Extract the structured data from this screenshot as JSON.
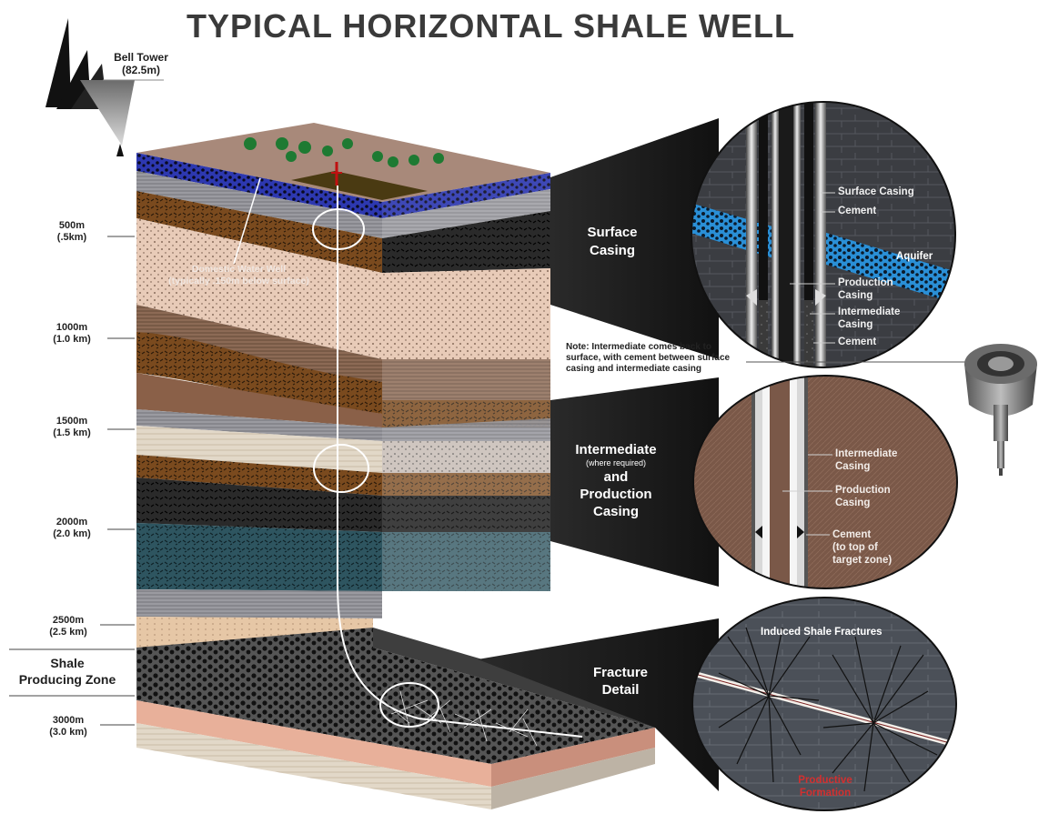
{
  "title": "TYPICAL HORIZONTAL SHALE WELL",
  "bell_tower": {
    "line1": "Bell Tower",
    "line2": "(82.5m)"
  },
  "depth_labels": [
    {
      "depth": "500m",
      "km": "(.5km)"
    },
    {
      "depth": "1000m",
      "km": "(1.0 km)"
    },
    {
      "depth": "1500m",
      "km": "(1.5 km)"
    },
    {
      "depth": "2000m",
      "km": "(2.0 km)"
    },
    {
      "depth": "2500m",
      "km": "(2.5 km)"
    },
    {
      "depth": "3000m",
      "km": "(3.0 km)"
    }
  ],
  "shale_zone": {
    "line1": "Shale",
    "line2": "Producing Zone"
  },
  "water_well": {
    "line1": "Domestic Water Well",
    "line2": "(typically .150m below surface)"
  },
  "callouts": {
    "surface": {
      "line1": "Surface",
      "line2": "Casing"
    },
    "intermediate": {
      "line1": "Intermediate",
      "line2": "(where required)",
      "line3": "and",
      "line4": "Production",
      "line5": "Casing"
    },
    "fracture": {
      "line1": "Fracture",
      "line2": "Detail"
    }
  },
  "surface_detail": {
    "surface_casing": "Surface Casing",
    "cement_top": "Cement",
    "aquifer": "Aquifer",
    "production_casing": {
      "line1": "Production",
      "line2": "Casing"
    },
    "intermediate_casing": {
      "line1": "Intermediate",
      "line2": "Casing"
    },
    "cement_bottom": "Cement"
  },
  "note": {
    "line1": "Note: Intermediate comes back to",
    "line2": "surface, with cement between surface",
    "line3": "casing and intermediate casing"
  },
  "intermediate_detail": {
    "intermediate_casing": {
      "line1": "Intermediate",
      "line2": "Casing"
    },
    "production_casing": {
      "line1": "Production",
      "line2": "Casing"
    },
    "cement": {
      "line1": "Cement",
      "line2": "(to top of",
      "line3": "target zone)"
    }
  },
  "fracture_detail": {
    "induced": "Induced Shale Fractures",
    "productive": {
      "line1": "Productive",
      "line2": "Formation"
    }
  }
}
